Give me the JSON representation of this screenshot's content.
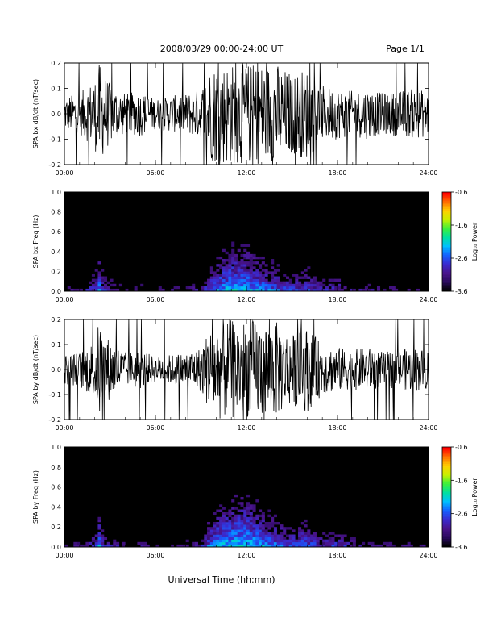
{
  "header": {
    "date_range": "2008/03/29  00:00-24:00 UT",
    "page": "Page 1/1"
  },
  "x_axis": {
    "label": "Universal Time (hh:mm)",
    "ticks": [
      "00:00",
      "06:00",
      "12:00",
      "18:00",
      "24:00"
    ],
    "range_hours": [
      0,
      24
    ]
  },
  "colors": {
    "waveform": "#000000",
    "background": "#ffffff",
    "colormap": [
      "#000000",
      "#2a0a5e",
      "#4a148c",
      "#3a2bd0",
      "#1560ff",
      "#00c0ff",
      "#00e0a0",
      "#3cf03c",
      "#c8f000",
      "#ffd000",
      "#ff7000",
      "#ff0000"
    ]
  },
  "chart_data": [
    {
      "type": "line",
      "name": "bx-waveform",
      "ylabel": "SPA bx dB/dt (nT/sec)",
      "ylim": [
        -0.2,
        0.2
      ],
      "yticks": [
        "-0.2",
        "-0.1",
        "0.0",
        "0.1",
        "0.2"
      ],
      "x": [
        0,
        1,
        2,
        2.3,
        2.6,
        3,
        4,
        5,
        6,
        7,
        8,
        9,
        9.5,
        10,
        11,
        12,
        13,
        14,
        15,
        16,
        17,
        18,
        19,
        20,
        21,
        22,
        23,
        24
      ],
      "envelope": [
        0.07,
        0.08,
        0.14,
        0.2,
        0.16,
        0.12,
        0.08,
        0.09,
        0.06,
        0.07,
        0.08,
        0.1,
        0.18,
        0.2,
        0.2,
        0.2,
        0.2,
        0.2,
        0.16,
        0.18,
        0.11,
        0.1,
        0.09,
        0.1,
        0.08,
        0.09,
        0.1,
        0.09
      ]
    },
    {
      "type": "heatmap",
      "name": "bx-spectrogram",
      "ylabel": "SPA bx Freq (Hz)",
      "ylim": [
        0,
        1
      ],
      "yticks": [
        "0.0",
        "0.2",
        "0.4",
        "0.6",
        "0.8",
        "1.0"
      ],
      "colorbar": {
        "label": "Log₁₀ Power",
        "range": [
          -3.6,
          -0.6
        ],
        "ticks": [
          "-0.6",
          "-1.6",
          "-2.6",
          "-3.6"
        ]
      },
      "x": [
        0,
        1,
        2,
        2.3,
        2.6,
        3,
        4,
        5,
        6,
        7,
        8,
        9,
        9.5,
        10,
        11,
        12,
        13,
        14,
        15,
        16,
        17,
        18,
        19,
        20,
        21,
        22,
        23,
        24
      ],
      "low_freq_power": [
        -3.0,
        -3.1,
        -2.6,
        -2.2,
        -2.7,
        -2.8,
        -3.1,
        -3.0,
        -3.2,
        -3.1,
        -3.0,
        -2.9,
        -2.5,
        -2.2,
        -2.0,
        -2.0,
        -2.2,
        -2.4,
        -2.6,
        -2.5,
        -2.8,
        -2.7,
        -3.0,
        -3.0,
        -3.0,
        -3.1,
        -3.1,
        -3.1
      ]
    },
    {
      "type": "line",
      "name": "by-waveform",
      "ylabel": "SPA by dB/dt (nT/sec)",
      "ylim": [
        -0.2,
        0.2
      ],
      "yticks": [
        "-0.2",
        "-0.1",
        "0.0",
        "0.1",
        "0.2"
      ],
      "x": [
        0,
        1,
        2,
        2.3,
        2.6,
        3,
        4,
        5,
        6,
        7,
        8,
        9,
        9.5,
        10,
        11,
        12,
        13,
        14,
        15,
        16,
        17,
        18,
        19,
        20,
        21,
        22,
        23,
        24
      ],
      "envelope": [
        0.06,
        0.07,
        0.12,
        0.2,
        0.15,
        0.12,
        0.07,
        0.08,
        0.05,
        0.06,
        0.07,
        0.09,
        0.16,
        0.2,
        0.2,
        0.2,
        0.2,
        0.19,
        0.14,
        0.17,
        0.1,
        0.09,
        0.08,
        0.09,
        0.07,
        0.08,
        0.09,
        0.08
      ]
    },
    {
      "type": "heatmap",
      "name": "by-spectrogram",
      "ylabel": "SPA by Freq (Hz)",
      "ylim": [
        0,
        1
      ],
      "yticks": [
        "0.0",
        "0.2",
        "0.4",
        "0.6",
        "0.8",
        "1.0"
      ],
      "colorbar": {
        "label": "Log₁₀ Power",
        "range": [
          -3.6,
          -0.6
        ],
        "ticks": [
          "-0.6",
          "-1.6",
          "-2.6",
          "-3.6"
        ]
      },
      "x": [
        0,
        1,
        2,
        2.3,
        2.6,
        3,
        4,
        5,
        6,
        7,
        8,
        9,
        9.5,
        10,
        11,
        12,
        13,
        14,
        15,
        16,
        17,
        18,
        19,
        20,
        21,
        22,
        23,
        24
      ],
      "low_freq_power": [
        -3.0,
        -3.1,
        -2.7,
        -2.2,
        -2.7,
        -2.8,
        -3.1,
        -3.0,
        -3.2,
        -3.1,
        -3.0,
        -2.9,
        -2.4,
        -2.1,
        -1.9,
        -1.9,
        -2.1,
        -2.3,
        -2.5,
        -2.4,
        -2.7,
        -2.6,
        -2.9,
        -3.0,
        -3.0,
        -3.1,
        -3.1,
        -3.1
      ]
    }
  ]
}
